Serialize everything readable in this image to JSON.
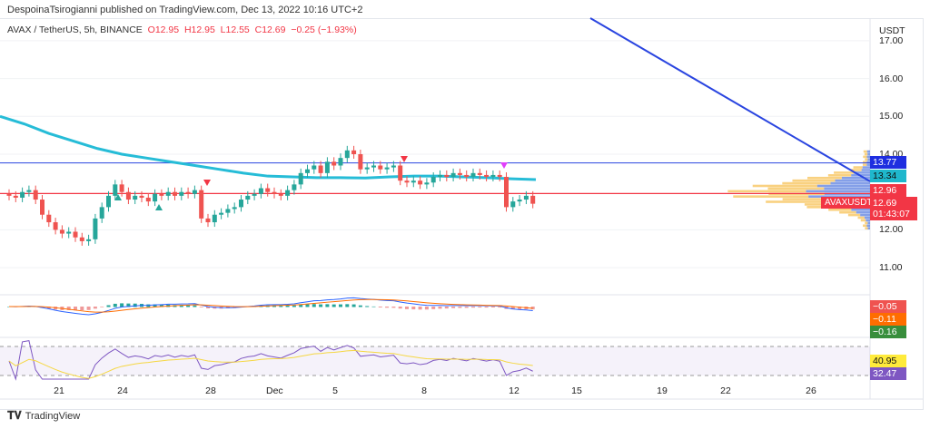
{
  "header": {
    "published": "DespoinaTsirogianni published on TradingView.com, Dec 13, 2022 10:16 UTC+2"
  },
  "legend": {
    "symbol": "AVAX / TetherUS, 5h, BINANCE",
    "o": "O12.95",
    "h": "H12.95",
    "l": "L12.55",
    "c": "C12.69",
    "chg": "−0.25 (−1.93%)"
  },
  "price_axis": {
    "currency": "USDT",
    "ticks": [
      "17.00",
      "16.00",
      "15.00",
      "14.00",
      "12.00",
      "11.00"
    ]
  },
  "tags": {
    "level_blue": "13.77",
    "ma": "13.34",
    "level_red": "12.96",
    "symbol": "AVAXUSDT",
    "last": "12.69",
    "countdown": "01:43:07",
    "macd_hist": "−0.05",
    "macd_signal": "−0.11",
    "macd": "−0.16",
    "rsi_ma": "40.95",
    "rsi": "32.47"
  },
  "time_axis": [
    "21",
    "24",
    "28",
    "Dec",
    "5",
    "8",
    "12",
    "15",
    "19",
    "22",
    "26"
  ],
  "footer": {
    "brand": "TradingView"
  },
  "colors": {
    "up": "#26a69a",
    "down": "#ef5350",
    "ma": "#26bcd7",
    "trend": "#2a45e0",
    "red_level": "#f23645"
  },
  "chart_data": {
    "type": "candlestick",
    "title": "AVAX / TetherUS, 5h, BINANCE",
    "ylim": [
      10.6,
      17.1
    ],
    "closes": [
      12.9,
      12.85,
      13.0,
      13.05,
      12.8,
      12.4,
      12.2,
      12.0,
      11.9,
      11.95,
      11.8,
      11.7,
      11.75,
      12.3,
      12.6,
      12.9,
      13.2,
      13.0,
      12.8,
      12.9,
      12.85,
      12.75,
      12.95,
      12.9,
      13.0,
      12.9,
      13.0,
      12.95,
      13.05,
      12.3,
      12.2,
      12.4,
      12.45,
      12.55,
      12.6,
      12.8,
      12.9,
      12.95,
      13.1,
      13.0,
      12.95,
      12.9,
      13.05,
      13.2,
      13.5,
      13.6,
      13.7,
      13.5,
      13.8,
      13.7,
      13.9,
      14.1,
      14.0,
      13.6,
      13.65,
      13.7,
      13.6,
      13.65,
      13.7,
      13.3,
      13.25,
      13.3,
      13.2,
      13.25,
      13.4,
      13.45,
      13.4,
      13.5,
      13.45,
      13.4,
      13.5,
      13.45,
      13.4,
      13.45,
      13.4,
      12.6,
      12.75,
      12.8,
      12.9,
      12.69
    ],
    "ma_path": [
      15.0,
      14.8,
      14.55,
      14.35,
      14.15,
      14.0,
      13.9,
      13.8,
      13.7,
      13.6,
      13.5,
      13.42,
      13.4,
      13.38,
      13.38,
      13.37,
      13.4,
      13.42,
      13.42,
      13.4,
      13.38,
      13.35,
      13.33
    ],
    "horizontal_levels": [
      13.77,
      12.96
    ]
  }
}
